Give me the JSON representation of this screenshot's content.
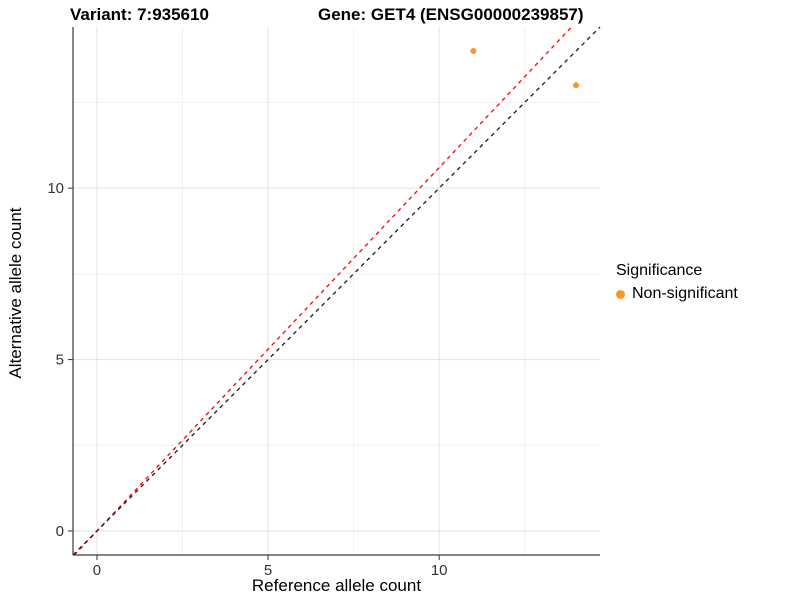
{
  "titles": {
    "variant": "Variant: 7:935610",
    "gene": "Gene: GET4 (ENSG00000239857)"
  },
  "axes": {
    "x_label": "Reference allele count",
    "y_label": "Alternative allele count"
  },
  "legend": {
    "title": "Significance",
    "items": [
      {
        "label": "Non-significant",
        "color": "#F89628"
      }
    ]
  },
  "chart_data": {
    "type": "scatter",
    "title_left": "Variant: 7:935610",
    "title_right": "Gene: GET4 (ENSG00000239857)",
    "xlabel": "Reference allele count",
    "ylabel": "Alternative allele count",
    "xlim": [
      -0.7,
      14.7
    ],
    "ylim": [
      -0.7,
      14.7
    ],
    "x_major_ticks": [
      0,
      5,
      10
    ],
    "y_major_ticks": [
      0,
      5,
      10
    ],
    "x_minor_ticks": [
      2.5,
      7.5,
      12.5
    ],
    "y_minor_ticks": [
      2.5,
      7.5,
      12.5
    ],
    "grid": true,
    "legend_position": "right",
    "series": [
      {
        "name": "Non-significant",
        "color": "#F89628",
        "marker": "circle",
        "points": [
          [
            11,
            14
          ],
          [
            14,
            13
          ]
        ]
      }
    ],
    "reference_lines": [
      {
        "name": "ratio-line",
        "slope": 1.06,
        "intercept": 0,
        "style": "dashed",
        "color": "#FF0000"
      },
      {
        "name": "identity-line",
        "slope": 1.0,
        "intercept": 0,
        "style": "dashed",
        "color": "#1A1A1A"
      }
    ]
  },
  "style": {
    "grid_major_color": "#E2E2E2",
    "grid_minor_color": "#F0F0F0",
    "axis_line_color": "#3A3A3A",
    "tick_color": "#333333",
    "point_radius": 3
  }
}
